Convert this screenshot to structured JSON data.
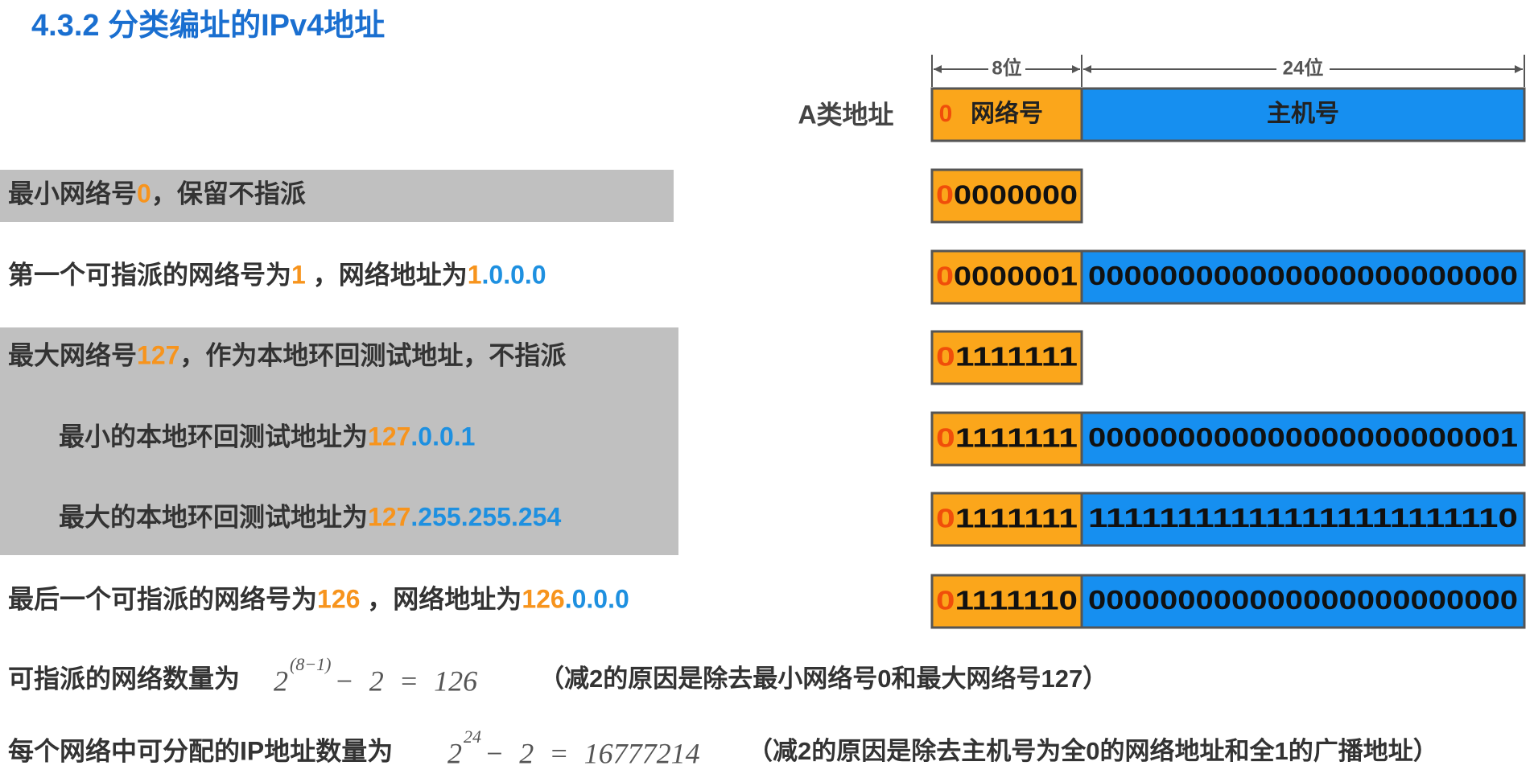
{
  "header": {
    "title": "4.3.2 分类编址的IPv4地址"
  },
  "diagram": {
    "class_label": "A类地址",
    "net_width_label": "8位",
    "host_width_label": "24位",
    "lead_bit": "0",
    "net_label": "网络号",
    "host_label": "主机号"
  },
  "rows": [
    {
      "text": [
        {
          "t": "最小网络号",
          "color": "#333333"
        },
        {
          "t": "0",
          "color": "#f7941d"
        },
        {
          "t": "，保留不指派",
          "color": "#333333"
        }
      ],
      "net": [
        "0",
        "0000000"
      ],
      "host": null
    },
    {
      "text": [
        {
          "t": "第一个可指派的网络号为",
          "color": "#333333"
        },
        {
          "t": "1",
          "color": "#f7941d"
        },
        {
          "t": " ，网络地址为",
          "color": "#333333"
        },
        {
          "t": "1",
          "color": "#f7941d"
        },
        {
          "t": ".0.0.0",
          "color": "#1e90e0"
        }
      ],
      "net": [
        "0",
        "0000001"
      ],
      "host": "000000000000000000000000"
    },
    {
      "text": [
        {
          "t": "最大网络号",
          "color": "#333333"
        },
        {
          "t": "127",
          "color": "#f7941d"
        },
        {
          "t": "，作为本地环回测试地址，不指派",
          "color": "#333333"
        }
      ],
      "net": [
        "0",
        "1111111"
      ],
      "host": null
    },
    {
      "text": [
        {
          "t": "最小的本地环回测试地址为",
          "color": "#333333"
        },
        {
          "t": "127",
          "color": "#f7941d"
        },
        {
          "t": ".0.0.1",
          "color": "#1e90e0"
        }
      ],
      "net": [
        "0",
        "1111111"
      ],
      "host": "000000000000000000000001"
    },
    {
      "text": [
        {
          "t": "最大的本地环回测试地址为",
          "color": "#333333"
        },
        {
          "t": "127",
          "color": "#f7941d"
        },
        {
          "t": ".255.255.254",
          "color": "#1e90e0"
        }
      ],
      "net": [
        "0",
        "1111111"
      ],
      "host": "111111111111111111111110"
    },
    {
      "text": [
        {
          "t": "最后一个可指派的网络号为",
          "color": "#333333"
        },
        {
          "t": "126",
          "color": "#f7941d"
        },
        {
          "t": " ，网络地址为",
          "color": "#333333"
        },
        {
          "t": "126",
          "color": "#f7941d"
        },
        {
          "t": ".0.0.0",
          "color": "#1e90e0"
        }
      ],
      "net": [
        "0",
        "1111110"
      ],
      "host": "000000000000000000000000"
    }
  ],
  "formulas": [
    {
      "label": "可指派的网络数量为",
      "base": "2",
      "exp": "(8−1)",
      "rest": "− 2 = 126",
      "note": "（减2的原因是除去最小网络号0和最大网络号127）"
    },
    {
      "label": "每个网络中可分配的IP地址数量为",
      "base": "2",
      "exp": "24",
      "rest": "− 2 = 16777214",
      "note": "（减2的原因是除去主机号为全0的网络地址和全1的广播地址）"
    }
  ]
}
